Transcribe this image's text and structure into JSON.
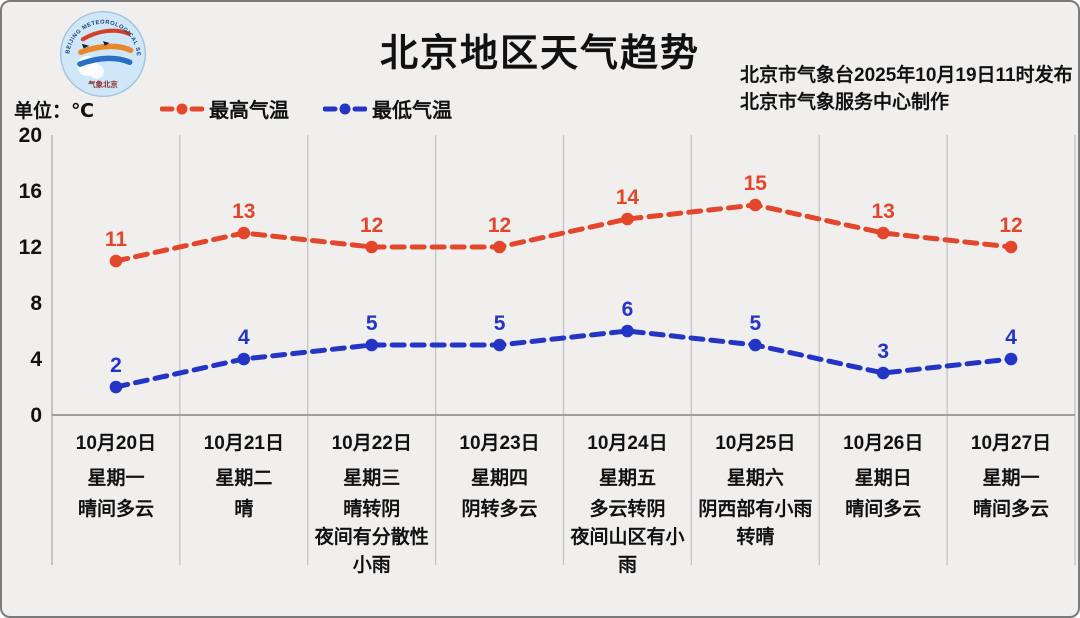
{
  "page": {
    "background": "#f0efee",
    "frame_border": "#7a7a7a"
  },
  "header": {
    "title": "北京地区天气趋势",
    "issue_line1": "北京市气象台2025年10月19日11时发布",
    "issue_line2": "北京市气象服务中心制作",
    "unit_label": "单位：℃"
  },
  "logo": {
    "text_top": "BEIJING METEOROLOGICAL SERVICE",
    "text_bottom": "气象北京"
  },
  "legend": [
    {
      "label": "最高气温",
      "color": "#e2472b"
    },
    {
      "label": "最低气温",
      "color": "#2435c5"
    }
  ],
  "chart_data": {
    "type": "line",
    "title": "北京地区天气趋势",
    "unit": "℃",
    "ylim": [
      0,
      20
    ],
    "yticks": [
      0,
      4,
      8,
      12,
      16,
      20
    ],
    "grid": "vertical-column-separators-only",
    "line_style": "dashed-with-round-markers",
    "legend_position": "top-left",
    "categories": [
      "10月20日",
      "10月21日",
      "10月22日",
      "10月23日",
      "10月24日",
      "10月25日",
      "10月26日",
      "10月27日"
    ],
    "columns": [
      {
        "date": "10月20日",
        "weekday": "星期一",
        "weather": "晴间多云"
      },
      {
        "date": "10月21日",
        "weekday": "星期二",
        "weather": "晴"
      },
      {
        "date": "10月22日",
        "weekday": "星期三",
        "weather": "晴转阴\n夜间有分散性\n小雨"
      },
      {
        "date": "10月23日",
        "weekday": "星期四",
        "weather": "阴转多云"
      },
      {
        "date": "10月24日",
        "weekday": "星期五",
        "weather": "多云转阴\n夜间山区有小\n雨"
      },
      {
        "date": "10月25日",
        "weekday": "星期六",
        "weather": "阴西部有小雨\n转晴"
      },
      {
        "date": "10月26日",
        "weekday": "星期日",
        "weather": "晴间多云"
      },
      {
        "date": "10月27日",
        "weekday": "星期一",
        "weather": "晴间多云"
      }
    ],
    "series": [
      {
        "name": "最高气温",
        "color": "#e2472b",
        "values": [
          11,
          13,
          12,
          12,
          14,
          15,
          13,
          12
        ]
      },
      {
        "name": "最低气温",
        "color": "#2435c5",
        "values": [
          2,
          4,
          5,
          5,
          6,
          5,
          3,
          4
        ]
      }
    ]
  }
}
